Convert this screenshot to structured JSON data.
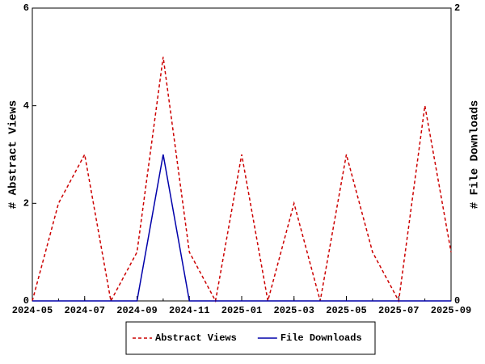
{
  "chart_data": {
    "type": "line",
    "x": [
      "2024-05",
      "2024-06",
      "2024-07",
      "2024-08",
      "2024-09",
      "2024-10",
      "2024-11",
      "2024-12",
      "2025-01",
      "2025-02",
      "2025-03",
      "2025-04",
      "2025-05",
      "2025-06",
      "2025-07",
      "2025-08",
      "2025-09"
    ],
    "xlim": [
      "2024-05",
      "2025-09"
    ],
    "xticks": [
      "2024-05",
      "2024-07",
      "2024-09",
      "2024-11",
      "2025-01",
      "2025-03",
      "2025-05",
      "2025-07",
      "2025-09"
    ],
    "ylabel": "# Abstract Views",
    "y2label": "# File Downloads",
    "ylim": [
      0,
      6
    ],
    "yticks": [
      0,
      2,
      4,
      6
    ],
    "y2lim": [
      0,
      2
    ],
    "y2ticks": [
      0,
      2
    ],
    "legend": "bottom",
    "series": [
      {
        "name": "Abstract Views",
        "color": "#cc0000",
        "dash": true,
        "values": [
          0,
          2,
          3,
          0,
          1,
          5,
          1,
          0,
          3,
          0,
          2,
          0,
          3,
          1,
          0,
          4,
          1
        ]
      },
      {
        "name": "File Downloads",
        "color": "#0000aa",
        "dash": false,
        "axis": "y2",
        "values": [
          0,
          0,
          0,
          0,
          0,
          1,
          0,
          0,
          0,
          0,
          0,
          0,
          0,
          0,
          0,
          0,
          0
        ]
      }
    ]
  }
}
